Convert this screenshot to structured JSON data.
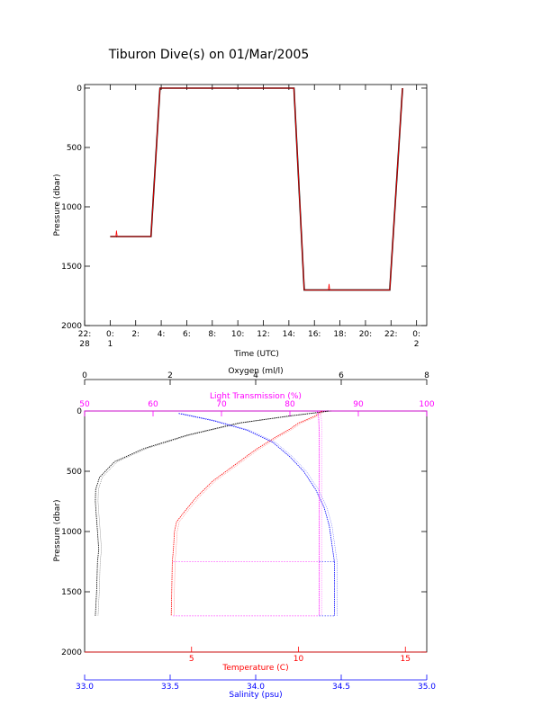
{
  "title": "Tiburon Dive(s) on 01/Mar/2005",
  "colors": {
    "black": "#000000",
    "red": "#ff0000",
    "magenta": "#ff00ff",
    "blue": "#0000ff",
    "lightblue": "#7777ff"
  },
  "chart_data": [
    {
      "type": "line",
      "title": "Tiburon Dive(s) on 01/Mar/2005",
      "xlabel": "Time (UTC)",
      "ylabel": "Pressure (dbar)",
      "xlim": [
        -2,
        24.8
      ],
      "ylim": [
        2000,
        -30
      ],
      "x_tick_labels": [
        {
          "x": -2,
          "top": "22:",
          "bottom": "28"
        },
        {
          "x": 0,
          "top": "0:",
          "bottom": "1"
        },
        {
          "x": 2,
          "top": "2:",
          "bottom": ""
        },
        {
          "x": 4,
          "top": "4:",
          "bottom": ""
        },
        {
          "x": 6,
          "top": "6:",
          "bottom": ""
        },
        {
          "x": 8,
          "top": "8:",
          "bottom": ""
        },
        {
          "x": 10,
          "top": "10:",
          "bottom": ""
        },
        {
          "x": 12,
          "top": "12:",
          "bottom": ""
        },
        {
          "x": 14,
          "top": "14:",
          "bottom": ""
        },
        {
          "x": 16,
          "top": "16:",
          "bottom": ""
        },
        {
          "x": 18,
          "top": "18:",
          "bottom": ""
        },
        {
          "x": 20,
          "top": "20:",
          "bottom": ""
        },
        {
          "x": 22,
          "top": "22:",
          "bottom": ""
        },
        {
          "x": 24,
          "top": "0:",
          "bottom": "2"
        }
      ],
      "y_ticks": [
        0,
        500,
        1000,
        1500,
        2000
      ],
      "series": [
        {
          "color": "#000000",
          "x": [
            0.0,
            3.2,
            3.9,
            14.4,
            15.2,
            21.9,
            22.9
          ],
          "y": [
            1250,
            1250,
            0,
            0,
            1700,
            1700,
            0
          ]
        },
        {
          "color": "#ff0000",
          "x": [
            0.0,
            0.45,
            0.5,
            0.55,
            3.2,
            3.9,
            14.4,
            15.2,
            17.1,
            17.15,
            17.2,
            21.9,
            22.9
          ],
          "y": [
            1250,
            1250,
            1200,
            1250,
            1250,
            0,
            0,
            1700,
            1700,
            1650,
            1700,
            1700,
            0
          ]
        }
      ]
    },
    {
      "type": "line",
      "ylabel": "Pressure (dbar)",
      "ylim": [
        2000,
        0
      ],
      "y_ticks": [
        0,
        500,
        1000,
        1500,
        2000
      ],
      "axes": {
        "oxygen": {
          "label": "Oxygen (ml/l)",
          "lim": [
            0,
            8
          ],
          "ticks": [
            0,
            2,
            4,
            6,
            8
          ]
        },
        "light_transmission": {
          "label": "Light Transmission (%)",
          "lim": [
            50,
            100
          ],
          "ticks": [
            50,
            60,
            70,
            80,
            90,
            100
          ]
        },
        "temperature": {
          "label": "Temperature (C)",
          "lim": [
            0,
            16
          ],
          "ticks": [
            5,
            10,
            15
          ]
        },
        "salinity": {
          "label": "Salinity (psu)",
          "lim": [
            33.0,
            35.0
          ],
          "ticks": [
            "33.0",
            "33.5",
            "34.0",
            "34.5",
            "35.0"
          ]
        }
      },
      "series": [
        {
          "name": "Oxygen",
          "axis": "oxygen",
          "color": "#000000",
          "x": [
            5.7,
            5.5,
            4.8,
            3.6,
            2.4,
            1.4,
            0.7,
            0.35,
            0.26,
            0.25,
            0.27,
            0.3,
            0.33,
            0.3,
            0.28,
            0.25
          ],
          "y": [
            0,
            10,
            40,
            100,
            200,
            310,
            420,
            550,
            650,
            750,
            850,
            1000,
            1150,
            1250,
            1500,
            1700
          ]
        },
        {
          "name": "Temperature",
          "axis": "temperature",
          "color": "#ff0000",
          "x": [
            11.1,
            10.8,
            10.0,
            9.6,
            9.0,
            8.0,
            7.0,
            6.0,
            5.2,
            4.6,
            4.3,
            4.2,
            4.15,
            4.1,
            4.05
          ],
          "y": [
            0,
            40,
            100,
            150,
            210,
            320,
            450,
            580,
            720,
            850,
            920,
            1000,
            1150,
            1250,
            1700
          ]
        },
        {
          "name": "Salinity",
          "axis": "salinity",
          "color": "#0000ff",
          "x": [
            33.55,
            33.75,
            33.95,
            34.1,
            34.2,
            34.28,
            34.35,
            34.4,
            34.43,
            34.44,
            34.45,
            34.46,
            34.46
          ],
          "y": [
            20,
            80,
            160,
            260,
            380,
            500,
            650,
            800,
            950,
            1050,
            1150,
            1250,
            1700
          ]
        },
        {
          "name": "Light Transmission",
          "axis": "light_transmission",
          "color": "#ff00ff",
          "x": [
            84.0,
            84.2,
            84.3,
            84.3,
            84.3,
            84.3,
            84.3
          ],
          "y": [
            0,
            50,
            200,
            600,
            1000,
            1250,
            1700
          ]
        }
      ]
    }
  ]
}
